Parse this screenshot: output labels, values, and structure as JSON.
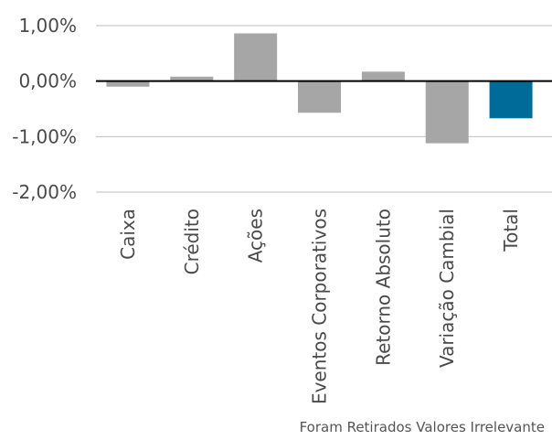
{
  "footnote": "Foram Retirados Valores Irrelevante",
  "chart_data": {
    "type": "bar",
    "categories": [
      "Caixa",
      "Crédito",
      "Ações",
      "Eventos Corporativos",
      "Retorno Absoluto",
      "Variação Cambial",
      "Total"
    ],
    "values": [
      -0.1,
      0.08,
      0.86,
      -0.57,
      0.17,
      -1.12,
      -0.67
    ],
    "unit": "%",
    "ylim": [
      -2.0,
      1.0
    ],
    "yticks": [
      1.0,
      0.0,
      -1.0,
      -2.0
    ],
    "ytick_labels": [
      "1,00%",
      "0,00%",
      "-1,00%",
      "-2,00%"
    ],
    "grid": true,
    "colors": {
      "bar": "#a6a6a6",
      "total_bar": "#006a99",
      "gridline": "#bfbfbf",
      "zero_line": "#000000",
      "text": "#4a4a4a"
    },
    "title": "",
    "xlabel": "",
    "ylabel": ""
  }
}
